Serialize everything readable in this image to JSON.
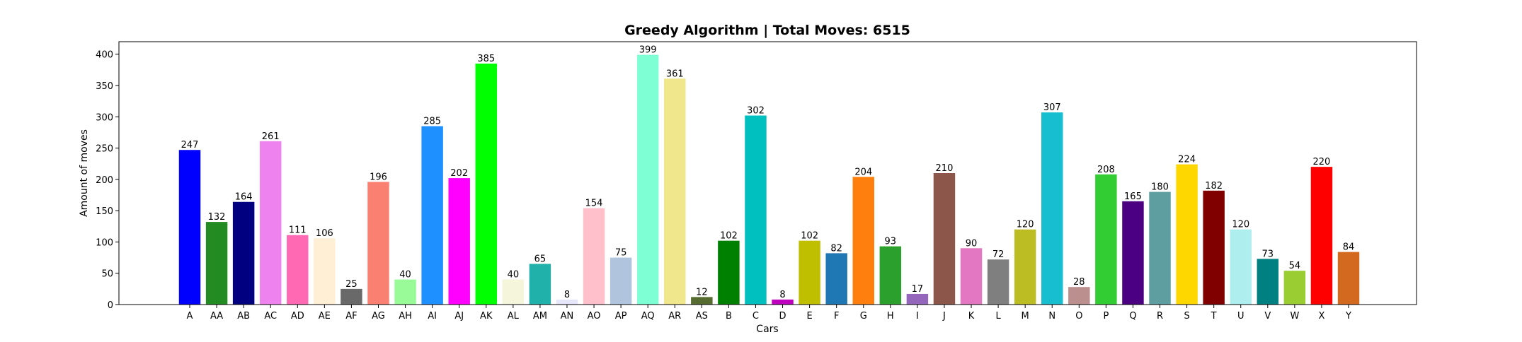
{
  "chart_data": {
    "type": "bar",
    "title": "Greedy Algorithm | Total Moves: 6515",
    "xlabel": "Cars",
    "ylabel": "Amount of moves",
    "ylim": [
      0,
      420
    ],
    "yticks": [
      0,
      50,
      100,
      150,
      200,
      250,
      300,
      350,
      400
    ],
    "grid": false,
    "categories": [
      "A",
      "AA",
      "AB",
      "AC",
      "AD",
      "AE",
      "AF",
      "AG",
      "AH",
      "AI",
      "AJ",
      "AK",
      "AL",
      "AM",
      "AN",
      "AO",
      "AP",
      "AQ",
      "AR",
      "AS",
      "B",
      "C",
      "D",
      "E",
      "F",
      "G",
      "H",
      "I",
      "J",
      "K",
      "L",
      "M",
      "N",
      "O",
      "P",
      "Q",
      "R",
      "S",
      "T",
      "U",
      "V",
      "W",
      "X",
      "Y"
    ],
    "values": [
      247,
      132,
      164,
      261,
      111,
      106,
      25,
      196,
      40,
      285,
      202,
      385,
      40,
      65,
      8,
      154,
      75,
      399,
      361,
      12,
      102,
      302,
      8,
      102,
      82,
      204,
      93,
      17,
      210,
      90,
      72,
      120,
      307,
      28,
      208,
      165,
      180,
      224,
      182,
      120,
      73,
      54,
      220,
      84
    ],
    "colors": [
      "#0000ff",
      "#228b22",
      "#000080",
      "#ee82ee",
      "#ff69b4",
      "#ffefd5",
      "#696969",
      "#fa8072",
      "#98fb98",
      "#1e90ff",
      "#ff00ff",
      "#00ff00",
      "#f5f5dc",
      "#20b2aa",
      "#e6e6fa",
      "#ffc0cb",
      "#b0c4de",
      "#7fffd4",
      "#f0e68c",
      "#556b2f",
      "#008000",
      "#00bfbf",
      "#bf00bf",
      "#bfbf00",
      "#1f77b4",
      "#ff7f0e",
      "#2ca02c",
      "#9467bd",
      "#8c564b",
      "#e377c2",
      "#7f7f7f",
      "#bcbd22",
      "#17becf",
      "#bc8f8f",
      "#32cd32",
      "#4b0082",
      "#5f9ea0",
      "#ffd700",
      "#800000",
      "#afeeee",
      "#008080",
      "#9acd32",
      "#ff0000",
      "#d2691e"
    ]
  }
}
